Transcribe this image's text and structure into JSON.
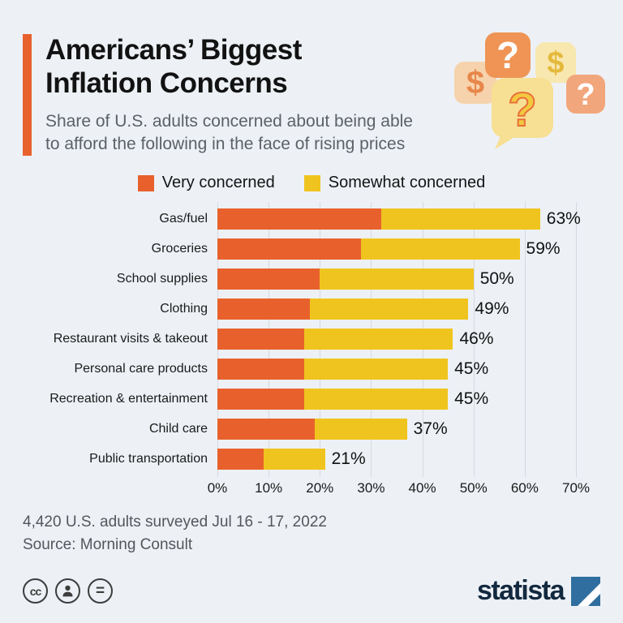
{
  "header": {
    "title_line1": "Americans’ Biggest",
    "title_line2": "Inflation Concerns",
    "subtitle_line1": "Share of U.S. adults concerned about being able",
    "subtitle_line2": "to afford the following in the face of rising prices"
  },
  "legend": [
    {
      "label": "Very concerned",
      "color": "#e8612c"
    },
    {
      "label": "Somewhat concerned",
      "color": "#f0c41e"
    }
  ],
  "chart_data": {
    "type": "bar",
    "orientation": "horizontal",
    "stacked": true,
    "title": "Americans’ Biggest Inflation Concerns",
    "categories": [
      "Gas/fuel",
      "Groceries",
      "School supplies",
      "Clothing",
      "Restaurant visits & takeout",
      "Personal care products",
      "Recreation & entertainment",
      "Child care",
      "Public transportation"
    ],
    "series": [
      {
        "name": "Very concerned",
        "color": "#e8612c",
        "values": [
          32,
          28,
          20,
          18,
          17,
          17,
          17,
          19,
          9
        ]
      },
      {
        "name": "Somewhat concerned",
        "color": "#f0c41e",
        "values": [
          31,
          31,
          30,
          31,
          29,
          28,
          28,
          18,
          12
        ]
      }
    ],
    "totals": [
      63,
      59,
      50,
      49,
      46,
      45,
      45,
      37,
      21
    ],
    "total_labels": [
      "63%",
      "59%",
      "50%",
      "49%",
      "46%",
      "45%",
      "45%",
      "37%",
      "21%"
    ],
    "x_ticks": [
      "0%",
      "10%",
      "20%",
      "30%",
      "40%",
      "50%",
      "60%",
      "70%"
    ],
    "xlim": [
      0,
      70
    ],
    "grid": true,
    "legend_position": "top"
  },
  "footer": {
    "note_line1": "4,420 U.S. adults surveyed Jul 16 - 17, 2022",
    "note_line2": "Source: Morning Consult",
    "brand": "statista"
  },
  "license": {
    "cc": "cc",
    "equal": "="
  },
  "colors": {
    "background": "#edf1f6",
    "accent": "#e8612c",
    "very_concerned": "#e8612c",
    "somewhat_concerned": "#f0c41e",
    "brand_navy": "#13293f",
    "brand_blue": "#2f6e9e"
  }
}
